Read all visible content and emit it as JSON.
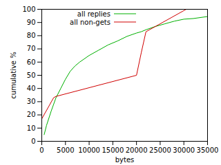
{
  "chart_data": {
    "type": "line",
    "x_label": "bytes",
    "y_label": "cumulative %",
    "xlim": [
      0,
      35000
    ],
    "xticks": [
      0,
      5000,
      10000,
      15000,
      20000,
      25000,
      30000,
      35000
    ],
    "ylim": [
      0,
      100
    ],
    "yticks": [
      0,
      10,
      20,
      30,
      40,
      50,
      60,
      70,
      80,
      90,
      100
    ],
    "legend": "top-left",
    "series": [
      {
        "name": "all replies",
        "color": "#00b000",
        "x": [
          500,
          1000,
          2000,
          3000,
          4000,
          5000,
          6000,
          7000,
          8000,
          10000,
          12000,
          14000,
          16000,
          18000,
          20000,
          21000,
          22000,
          24000,
          26000,
          28000,
          30000,
          32000,
          35000
        ],
        "values": [
          5,
          12,
          23,
          33,
          40,
          47,
          53,
          57,
          60,
          65,
          69,
          73,
          76,
          79.5,
          82,
          83,
          84.5,
          87,
          89,
          91,
          92.5,
          93,
          94.5
        ]
      },
      {
        "name": "all non-gets",
        "color": "#d00000",
        "x": [
          0,
          2500,
          3000,
          20000,
          21000,
          22000,
          30500
        ],
        "values": [
          17,
          33,
          34,
          50,
          67,
          83,
          100
        ]
      }
    ]
  }
}
